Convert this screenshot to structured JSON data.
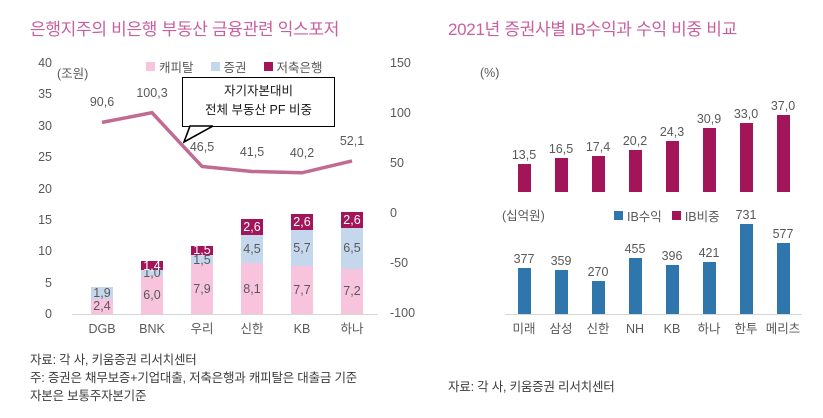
{
  "left_chart": {
    "title": "은행지주의 비은행 부동산 금융관련 익스포저",
    "title_color": "#c8609e",
    "unit_label": "(조원)",
    "footnotes": [
      "자료: 각 사, 키움증권 리서치센터",
      "주: 증권은 채무보증+기업대출, 저축은행과 캐피탈은 대출금 기준",
      "자본은 보통주자본기준"
    ]
  },
  "right_chart": {
    "title": "2021년 증권사별 IB수익과 수익 비중 비교",
    "title_color": "#c8609e",
    "percent_unit_label": "(%)",
    "billion_unit_label": "(십억원)",
    "footnote": "자료: 각 사, 키움증권 리서치센터"
  },
  "chart_data": [
    {
      "type": "bar+line",
      "title": "은행지주의 비은행 부동산 금융관련 익스포저",
      "stacked": true,
      "categories": [
        "DGB",
        "BNK",
        "우리",
        "신한",
        "KB",
        "하나"
      ],
      "left_axis": {
        "unit": "조원",
        "ticks": [
          40,
          35,
          30,
          25,
          20,
          15,
          10,
          5,
          0
        ],
        "min": 0,
        "max": 40
      },
      "right_axis": {
        "ticks": [
          150,
          100,
          50,
          0,
          -50,
          -100
        ],
        "min": -100,
        "max": 150
      },
      "annotation": [
        "자기자본대비",
        "전체 부동산 PF 비중"
      ],
      "series": [
        {
          "name": "캐피탈",
          "type": "bar",
          "color": "#f8c3dc",
          "label_color": "#595959",
          "values": [
            2.4,
            6.0,
            7.9,
            8.1,
            7.7,
            7.2
          ],
          "labels": [
            "2,4",
            "6,0",
            "7,9",
            "8,1",
            "7,7",
            "7,2"
          ]
        },
        {
          "name": "증권",
          "type": "bar",
          "color": "#c5d7ec",
          "label_color": "#595959",
          "values": [
            1.9,
            1.0,
            1.5,
            4.5,
            5.7,
            6.5
          ],
          "labels": [
            "1,9",
            "1,0",
            "1,5",
            "4,5",
            "5,7",
            "6,5"
          ]
        },
        {
          "name": "저축은행",
          "type": "bar",
          "color": "#a21559",
          "label_color": "#ffffff",
          "values": [
            0,
            1.4,
            1.5,
            2.6,
            2.6,
            2.6
          ],
          "labels": [
            "",
            "1,4",
            "1,5",
            "2,6",
            "2,6",
            "2,6"
          ]
        },
        {
          "name": "자기자본대비 전체 부동산 PF 비중",
          "type": "line",
          "axis": "right",
          "color": "#c16a92",
          "values": [
            90.6,
            100.3,
            46.5,
            41.5,
            40.2,
            52.1
          ],
          "labels": [
            "90,6",
            "100,3",
            "46,5",
            "41,5",
            "40,2",
            "52,1"
          ]
        }
      ]
    },
    {
      "type": "bar",
      "title": "2021년 증권사별 IB수익과 수익 비중 비교",
      "categories": [
        "미래",
        "삼성",
        "신한",
        "NH",
        "KB",
        "하나",
        "한투",
        "메리츠"
      ],
      "series": [
        {
          "name": "IB수익",
          "unit": "십억원",
          "color": "#2f76ad",
          "values": [
            377,
            359,
            270,
            455,
            396,
            421,
            731,
            577
          ],
          "labels": [
            "377",
            "359",
            "270",
            "455",
            "396",
            "421",
            "731",
            "577"
          ]
        },
        {
          "name": "IB비중",
          "unit": "%",
          "color": "#a21559",
          "values": [
            13.5,
            16.5,
            17.4,
            20.2,
            24.3,
            30.9,
            33.0,
            37.0
          ],
          "labels": [
            "13,5",
            "16,5",
            "17,4",
            "20,2",
            "24,3",
            "30,9",
            "33,0",
            "37,0"
          ]
        }
      ]
    }
  ]
}
